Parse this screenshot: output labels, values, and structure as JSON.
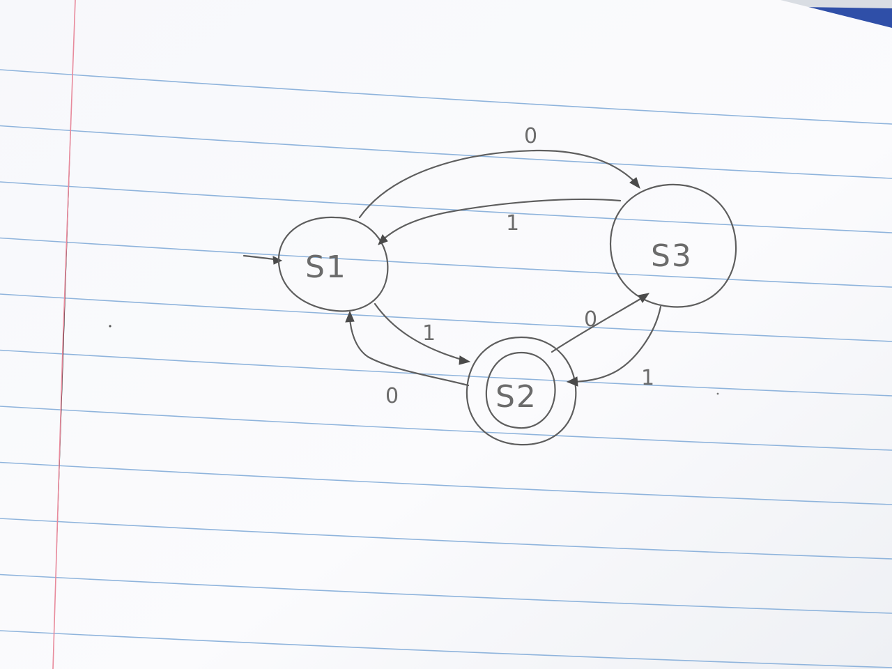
{
  "diagram": {
    "type": "state-machine",
    "states": [
      {
        "id": "s1",
        "label": "S1",
        "initial": true,
        "accepting": false
      },
      {
        "id": "s2",
        "label": "S2",
        "initial": false,
        "accepting": true
      },
      {
        "id": "s3",
        "label": "S3",
        "initial": false,
        "accepting": false
      }
    ],
    "transitions": [
      {
        "id": "t-s1-s3",
        "from": "S1",
        "to": "S3",
        "label": "0"
      },
      {
        "id": "t-s3-s1",
        "from": "S3",
        "to": "S1",
        "label": "1"
      },
      {
        "id": "t-s1-s2",
        "from": "S1",
        "to": "S2",
        "label": "1"
      },
      {
        "id": "t-s2-s1",
        "from": "S2",
        "to": "S1",
        "label": "0"
      },
      {
        "id": "t-s2-s3",
        "from": "S2",
        "to": "S3",
        "label": "0"
      },
      {
        "id": "t-s3-s2",
        "from": "S3",
        "to": "S2",
        "label": "1"
      }
    ]
  },
  "colors": {
    "paper": "#fbfbfd",
    "rule_line": "#8fb4dc",
    "margin_line": "#e88a9c",
    "pencil": "#5e5e5e"
  }
}
